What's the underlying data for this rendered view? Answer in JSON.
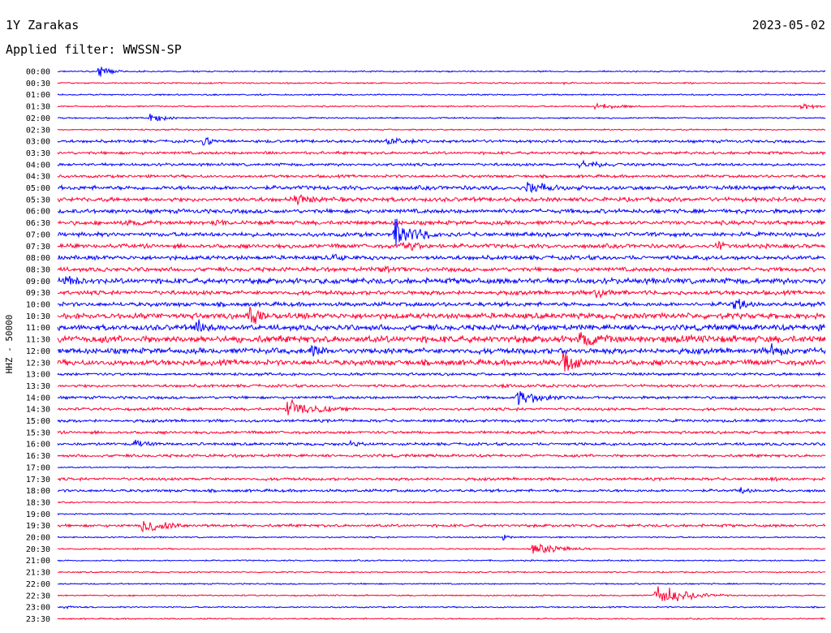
{
  "station": "1Y Zarakas",
  "date": "2023-05-02",
  "filter_label": "Applied filter: WWSSN-SP",
  "channel_label": "HHZ - 50000",
  "colors": {
    "blue": "#0000ff",
    "red": "#ff0033"
  },
  "chart_data": {
    "type": "line",
    "title": "1Y Zarakas",
    "subtitle": "Applied filter: WWSSN-SP",
    "ylabel": "HHZ - 50000",
    "rows": [
      "00:00",
      "00:30",
      "01:00",
      "01:30",
      "02:00",
      "02:30",
      "03:00",
      "03:30",
      "04:00",
      "04:30",
      "05:00",
      "05:30",
      "06:00",
      "06:30",
      "07:00",
      "07:30",
      "08:00",
      "08:30",
      "09:00",
      "09:30",
      "10:00",
      "10:30",
      "11:00",
      "11:30",
      "12:00",
      "12:30",
      "13:00",
      "13:30",
      "14:00",
      "14:30",
      "15:00",
      "15:30",
      "16:00",
      "16:30",
      "17:00",
      "17:30",
      "18:00",
      "18:30",
      "19:00",
      "19:30",
      "20:00",
      "20:30",
      "21:00",
      "21:30",
      "22:00",
      "22:30",
      "23:00",
      "23:30"
    ],
    "row_colors": [
      "blue",
      "red"
    ],
    "noise_level": [
      1,
      1,
      1,
      1,
      1,
      1,
      2,
      2,
      2,
      2,
      3,
      3,
      3,
      3,
      3,
      3,
      3,
      3,
      4,
      3,
      3,
      4,
      4,
      5,
      4,
      4,
      2,
      2,
      2,
      2,
      2,
      2,
      2,
      2,
      1,
      2,
      2,
      1,
      1,
      2,
      1,
      1,
      1,
      1,
      1,
      1,
      1,
      1
    ],
    "events": [
      {
        "row": 0,
        "t": 0.055,
        "amp": 10,
        "dur": 0.015
      },
      {
        "row": 1,
        "t": 0.66,
        "amp": 2,
        "dur": 0.02
      },
      {
        "row": 3,
        "t": 0.7,
        "amp": 5,
        "dur": 0.04
      },
      {
        "row": 3,
        "t": 0.97,
        "amp": 6,
        "dur": 0.02
      },
      {
        "row": 4,
        "t": 0.12,
        "amp": 8,
        "dur": 0.02
      },
      {
        "row": 6,
        "t": 0.19,
        "amp": 7,
        "dur": 0.03
      },
      {
        "row": 6,
        "t": 0.43,
        "amp": 6,
        "dur": 0.04
      },
      {
        "row": 7,
        "t": 0.27,
        "amp": 3,
        "dur": 0.03
      },
      {
        "row": 8,
        "t": 0.68,
        "amp": 7,
        "dur": 0.04
      },
      {
        "row": 10,
        "t": 0.61,
        "amp": 10,
        "dur": 0.04
      },
      {
        "row": 11,
        "t": 0.31,
        "amp": 8,
        "dur": 0.04
      },
      {
        "row": 13,
        "t": 0.09,
        "amp": 6,
        "dur": 0.04
      },
      {
        "row": 13,
        "t": 0.21,
        "amp": 7,
        "dur": 0.01
      },
      {
        "row": 14,
        "t": 0.44,
        "amp": 24,
        "dur": 0.03
      },
      {
        "row": 15,
        "t": 0.45,
        "amp": 14,
        "dur": 0.02
      },
      {
        "row": 15,
        "t": 0.86,
        "amp": 12,
        "dur": 0.01
      },
      {
        "row": 16,
        "t": 0.36,
        "amp": 7,
        "dur": 0.02
      },
      {
        "row": 17,
        "t": 0.42,
        "amp": 6,
        "dur": 0.03
      },
      {
        "row": 18,
        "t": 0.01,
        "amp": 12,
        "dur": 0.02
      },
      {
        "row": 19,
        "t": 0.7,
        "amp": 8,
        "dur": 0.04
      },
      {
        "row": 20,
        "t": 0.88,
        "amp": 10,
        "dur": 0.03
      },
      {
        "row": 21,
        "t": 0.25,
        "amp": 16,
        "dur": 0.02
      },
      {
        "row": 22,
        "t": 0.18,
        "amp": 14,
        "dur": 0.02
      },
      {
        "row": 22,
        "t": 0.99,
        "amp": 10,
        "dur": 0.01
      },
      {
        "row": 23,
        "t": 0.68,
        "amp": 16,
        "dur": 0.04
      },
      {
        "row": 24,
        "t": 0.33,
        "amp": 9,
        "dur": 0.03
      },
      {
        "row": 24,
        "t": 0.93,
        "amp": 12,
        "dur": 0.02
      },
      {
        "row": 25,
        "t": 0.66,
        "amp": 22,
        "dur": 0.02
      },
      {
        "row": 27,
        "t": 0.58,
        "amp": 4,
        "dur": 0.03
      },
      {
        "row": 28,
        "t": 0.6,
        "amp": 12,
        "dur": 0.04
      },
      {
        "row": 29,
        "t": 0.3,
        "amp": 14,
        "dur": 0.04
      },
      {
        "row": 32,
        "t": 0.1,
        "amp": 6,
        "dur": 0.03
      },
      {
        "row": 32,
        "t": 0.38,
        "amp": 5,
        "dur": 0.03
      },
      {
        "row": 35,
        "t": 0.93,
        "amp": 4,
        "dur": 0.02
      },
      {
        "row": 36,
        "t": 0.89,
        "amp": 6,
        "dur": 0.02
      },
      {
        "row": 39,
        "t": 0.11,
        "amp": 12,
        "dur": 0.04
      },
      {
        "row": 40,
        "t": 0.58,
        "amp": 5,
        "dur": 0.01
      },
      {
        "row": 41,
        "t": 0.62,
        "amp": 8,
        "dur": 0.04
      },
      {
        "row": 45,
        "t": 0.78,
        "amp": 16,
        "dur": 0.04
      },
      {
        "row": 46,
        "t": 0.01,
        "amp": 3,
        "dur": 0.02
      }
    ]
  }
}
